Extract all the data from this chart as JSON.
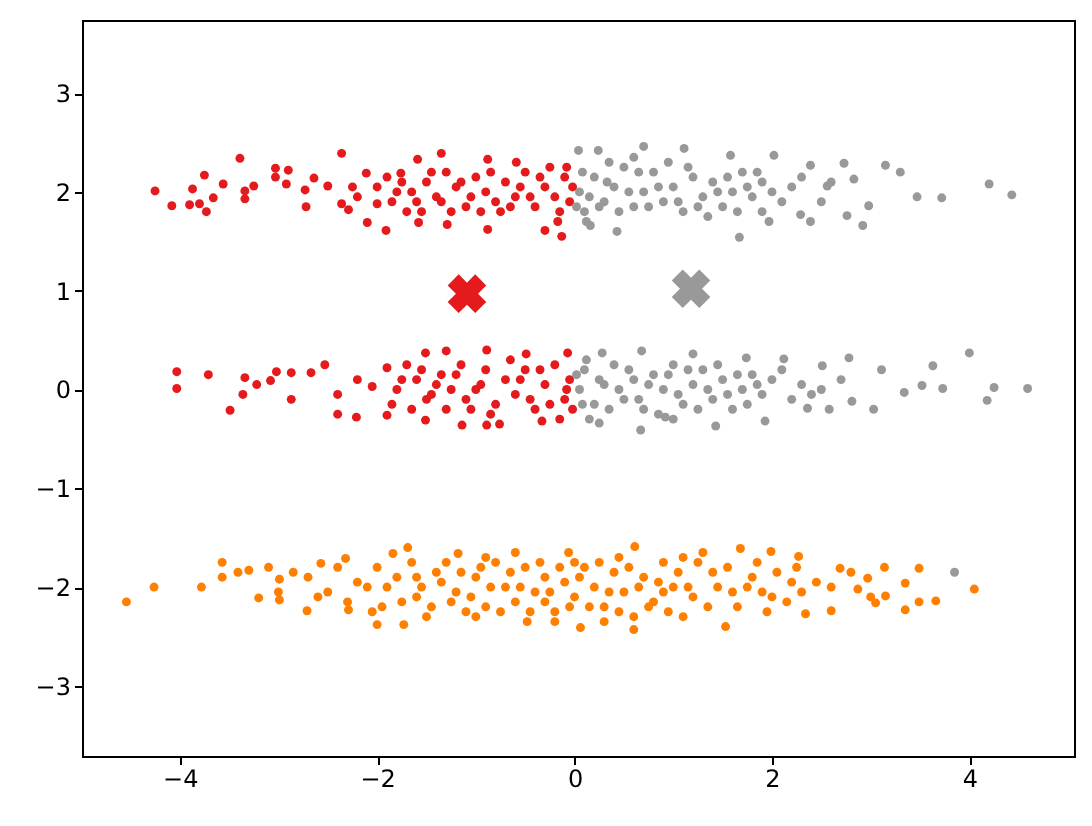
{
  "chart_data": {
    "type": "scatter",
    "xlim": [
      -4.99,
      5.06
    ],
    "ylim": [
      -3.71,
      3.74
    ],
    "xticks": [
      -4,
      -2,
      0,
      2,
      4
    ],
    "yticks": [
      -3,
      -2,
      -1,
      0,
      1,
      2,
      3
    ],
    "series": [
      {
        "color": "#e41a1c",
        "marker": "circle",
        "x": [
          -4.25,
          -4.08,
          -3.9,
          -3.87,
          -3.8,
          -3.75,
          -3.73,
          -3.66,
          -3.56,
          -3.39,
          -3.34,
          -3.34,
          -3.25,
          -3.03,
          -3.03,
          -2.9,
          -2.92,
          -2.73,
          -2.72,
          -2.64,
          -2.5,
          -2.36,
          -2.36,
          -2.29,
          -2.25,
          -2.11,
          -2.1,
          -2.0,
          -1.91,
          -1.76,
          -1.59,
          -1.58,
          -1.35,
          -1.29,
          -0.88,
          -0.88,
          -0.59,
          -0.3,
          -0.13,
          -0.17,
          -1.8,
          -1.6,
          -1.5,
          -1.4,
          -1.2,
          -1.1,
          -1.0,
          -0.9,
          -0.8,
          -0.7,
          -0.6,
          -0.5,
          -0.4,
          -0.3,
          -0.2,
          -0.1,
          -0.05,
          -0.02,
          -1.3,
          -0.75,
          -0.25,
          -1.7,
          -2.0,
          -2.2,
          -1.9,
          -4.03,
          -4.03,
          -3.71,
          -3.49,
          -3.34,
          -3.36,
          -3.22,
          -3.08,
          -3.02,
          -2.87,
          -2.87,
          -2.67,
          -2.53,
          -2.4,
          -2.21,
          -2.05,
          -1.9,
          -1.9,
          -1.51,
          -1.3,
          -1.14,
          -0.89,
          -0.89,
          -0.76,
          -0.49,
          -0.33,
          -0.07,
          -1.51,
          -1.8,
          -1.6,
          -1.5,
          -1.4,
          -1.2,
          -1.1,
          -1.0,
          -0.9,
          -0.8,
          -0.7,
          -0.6,
          -0.5,
          -0.4,
          -0.3,
          -0.2,
          -0.1,
          -0.05,
          -0.02,
          -1.3,
          -2.2,
          -2.4,
          -1.7,
          -0.65,
          -0.15,
          -1.85,
          -1.75,
          -1.65,
          -1.55,
          -1.45,
          -1.35,
          -1.25,
          -1.15,
          -1.05,
          -0.95,
          -0.85,
          -0.65,
          -0.55,
          -0.45,
          -0.35,
          -0.15,
          -0.08,
          -1.85,
          -1.75,
          -1.65,
          -1.55,
          -1.45,
          -1.35,
          -1.25,
          -1.15,
          -1.05,
          -0.95,
          -0.85,
          -0.55,
          -0.45,
          -0.35,
          -0.25,
          -0.08
        ],
        "values": [
          2.01,
          1.86,
          1.87,
          2.03,
          1.88,
          2.17,
          1.8,
          1.94,
          2.08,
          2.34,
          2.01,
          1.93,
          2.06,
          2.24,
          2.15,
          2.22,
          2.08,
          2.02,
          1.85,
          2.14,
          2.06,
          2.39,
          1.88,
          1.82,
          2.05,
          2.19,
          1.69,
          1.88,
          1.61,
          2.19,
          2.33,
          1.69,
          2.39,
          1.67,
          1.62,
          2.33,
          2.3,
          1.61,
          1.55,
          1.7,
          2.0,
          1.9,
          2.1,
          1.95,
          2.05,
          1.85,
          2.15,
          2.0,
          1.9,
          2.1,
          1.95,
          2.2,
          1.85,
          2.05,
          1.95,
          2.15,
          1.9,
          2.05,
          2.2,
          1.8,
          2.25,
          1.8,
          2.05,
          1.95,
          2.15,
          0.18,
          0.01,
          0.15,
          -0.21,
          0.12,
          -0.05,
          0.05,
          0.09,
          0.18,
          0.17,
          -0.1,
          0.17,
          0.25,
          -0.25,
          -0.28,
          0.03,
          0.22,
          -0.26,
          0.37,
          0.39,
          -0.36,
          0.4,
          -0.36,
          -0.35,
          0.36,
          -0.32,
          0.37,
          -0.31,
          0.0,
          0.1,
          -0.1,
          0.05,
          0.15,
          -0.1,
          0.0,
          0.2,
          -0.15,
          0.1,
          -0.05,
          0.2,
          -0.2,
          0.05,
          0.25,
          -0.1,
          0.1,
          -0.2,
          -0.2,
          0.1,
          -0.05,
          0.25,
          0.3,
          -0.3,
          1.9,
          2.1,
          2.0,
          1.8,
          2.2,
          1.9,
          1.8,
          2.1,
          1.95,
          1.8,
          2.2,
          1.85,
          2.05,
          1.95,
          2.15,
          1.8,
          2.25,
          -0.15,
          0.1,
          -0.2,
          0.2,
          -0.05,
          0.15,
          0.0,
          0.25,
          -0.2,
          0.05,
          -0.25,
          0.1,
          -0.1,
          0.2,
          -0.15,
          0.0
        ]
      },
      {
        "color": "#999999",
        "marker": "circle",
        "x": [
          0.04,
          0.24,
          0.7,
          1.11,
          1.58,
          2.02,
          2.39,
          2.73,
          3.15,
          3.3,
          3.47,
          3.72,
          4.2,
          4.43,
          1.67,
          1.97,
          2.39,
          2.76,
          2.92,
          2.29,
          0.43,
          0.16,
          2.98,
          2.56,
          2.83,
          0.05,
          0.1,
          0.2,
          0.3,
          0.4,
          0.5,
          0.6,
          0.7,
          0.8,
          0.9,
          1.0,
          1.1,
          1.2,
          1.3,
          1.4,
          1.5,
          1.6,
          1.7,
          1.8,
          1.9,
          2.1,
          2.2,
          0.35,
          0.95,
          1.35,
          0.15,
          0.08,
          0.12,
          0.25,
          0.33,
          0.45,
          0.55,
          0.65,
          0.75,
          0.85,
          1.05,
          1.15,
          1.25,
          1.45,
          1.55,
          1.65,
          1.75,
          1.85,
          2.0,
          2.3,
          2.5,
          2.6,
          0.02,
          0.6,
          1.9,
          0.28,
          0.68,
          1.2,
          1.74,
          2.12,
          2.51,
          2.78,
          3.11,
          3.63,
          4.0,
          4.25,
          4.18,
          4.59,
          3.73,
          3.52,
          3.34,
          3.03,
          2.81,
          2.58,
          2.36,
          1.93,
          1.43,
          0.67,
          0.25,
          0.92,
          0.05,
          0.1,
          0.2,
          0.3,
          0.4,
          0.5,
          0.6,
          0.7,
          0.8,
          0.9,
          1.0,
          1.1,
          1.2,
          1.3,
          1.4,
          1.5,
          1.6,
          1.7,
          1.8,
          1.9,
          2.0,
          2.2,
          2.3,
          2.5,
          0.15,
          0.08,
          0.12,
          0.25,
          0.35,
          0.45,
          0.55,
          0.65,
          0.75,
          0.85,
          0.95,
          1.05,
          1.15,
          1.25,
          1.35,
          1.45,
          1.55,
          1.65,
          1.75,
          1.85,
          2.1,
          2.4,
          2.7,
          0.02,
          1.0,
          3.85
        ],
        "values": [
          2.42,
          2.42,
          2.46,
          2.44,
          2.37,
          2.37,
          2.27,
          2.29,
          2.27,
          2.2,
          1.95,
          1.94,
          2.08,
          1.97,
          1.54,
          1.7,
          1.7,
          1.76,
          1.66,
          1.77,
          1.6,
          1.66,
          1.86,
          2.06,
          2.13,
          2.0,
          1.8,
          2.15,
          1.9,
          2.05,
          2.25,
          1.85,
          2.0,
          2.2,
          1.9,
          2.05,
          1.8,
          2.15,
          1.95,
          2.1,
          1.85,
          2.0,
          2.2,
          1.95,
          2.1,
          1.9,
          2.05,
          2.3,
          2.3,
          1.75,
          1.95,
          2.2,
          1.7,
          1.85,
          2.1,
          1.8,
          2.0,
          2.2,
          1.85,
          2.05,
          1.9,
          2.25,
          1.85,
          2.0,
          2.15,
          1.8,
          2.05,
          2.2,
          2.0,
          2.15,
          1.9,
          2.1,
          1.85,
          2.35,
          1.8,
          0.37,
          0.39,
          0.36,
          0.32,
          0.31,
          0.24,
          0.32,
          0.2,
          0.24,
          0.37,
          0.02,
          -0.11,
          0.01,
          0.01,
          0.04,
          -0.03,
          -0.2,
          -0.12,
          -0.2,
          -0.19,
          -0.32,
          -0.37,
          -0.41,
          -0.34,
          -0.28,
          0.0,
          0.2,
          -0.15,
          0.05,
          0.25,
          -0.1,
          0.1,
          -0.2,
          0.15,
          0.0,
          0.25,
          -0.15,
          0.05,
          0.2,
          -0.1,
          0.1,
          -0.2,
          0.0,
          0.15,
          -0.05,
          0.1,
          -0.1,
          0.05,
          0.0,
          -0.3,
          -0.15,
          0.3,
          0.1,
          -0.2,
          0.0,
          0.2,
          -0.1,
          0.05,
          -0.25,
          0.15,
          -0.05,
          0.2,
          -0.2,
          0.0,
          0.25,
          -0.05,
          0.15,
          -0.15,
          0.05,
          0.2,
          -0.05,
          0.1,
          0.15,
          -0.3,
          -1.85
        ]
      },
      {
        "color": "#ff7f00",
        "marker": "circle",
        "x": [
          -4.54,
          -4.26,
          -3.78,
          -3.57,
          -3.57,
          -3.41,
          -3.3,
          -3.2,
          -3.1,
          -2.99,
          -2.99,
          -2.71,
          -2.57,
          -2.29,
          -2.32,
          -2.0,
          -1.73,
          -1.84,
          -1.69,
          -1.18,
          -0.48,
          0.06,
          -0.06,
          0.61,
          0.6,
          1.53,
          1.68,
          1.99,
          2.27,
          2.34,
          2.6,
          2.69,
          2.87,
          2.97,
          3.14,
          3.15,
          3.05,
          3.35,
          3.35,
          3.49,
          3.49,
          3.66,
          4.05,
          -1.9,
          -1.6,
          -1.4,
          -1.2,
          -1.0,
          -0.9,
          -0.8,
          -0.7,
          -0.6,
          -0.5,
          -0.4,
          -0.3,
          -0.2,
          -0.1,
          0.0,
          0.1,
          0.2,
          0.3,
          0.4,
          0.5,
          0.7,
          0.8,
          0.9,
          1.0,
          1.2,
          1.4,
          1.6,
          1.8,
          2.0,
          2.2,
          -2.2,
          -2.5,
          -1.5,
          0.6,
          1.1,
          -1.1,
          -2.7,
          -2.4,
          -2.3,
          -2.1,
          -2.0,
          -1.95,
          -1.8,
          -1.75,
          -1.65,
          -1.55,
          -1.45,
          -1.35,
          -1.3,
          -1.25,
          -1.15,
          -1.05,
          -0.95,
          -0.85,
          -0.75,
          -0.65,
          -0.55,
          -0.45,
          -0.35,
          -0.25,
          -0.15,
          -0.05,
          0.05,
          0.15,
          0.25,
          0.35,
          0.45,
          0.55,
          0.65,
          0.75,
          0.85,
          0.95,
          1.05,
          1.15,
          1.25,
          1.35,
          1.45,
          1.55,
          1.65,
          1.75,
          1.85,
          1.95,
          2.05,
          2.15,
          2.25,
          2.3,
          2.45,
          -2.6,
          -2.85,
          -3.0,
          2.8,
          3.0,
          -0.6,
          0.3,
          -1.0,
          1.3,
          -0.3,
          0.0,
          0.9,
          -1.6,
          1.9,
          -0.9,
          0.45,
          -0.2,
          1.1,
          -2.05,
          2.6
        ],
        "values": [
          -2.15,
          -2.0,
          -2.0,
          -1.75,
          -1.9,
          -1.85,
          -1.83,
          -2.11,
          -1.8,
          -1.92,
          -2.13,
          -2.24,
          -1.76,
          -2.23,
          -1.71,
          -2.38,
          -2.38,
          -1.66,
          -1.6,
          -1.66,
          -2.35,
          -2.41,
          -1.65,
          -1.59,
          -2.43,
          -2.4,
          -1.61,
          -1.64,
          -1.69,
          -2.27,
          -2.24,
          -1.81,
          -2.02,
          -1.91,
          -1.8,
          -2.09,
          -2.16,
          -1.96,
          -2.23,
          -1.81,
          -2.15,
          -2.14,
          -2.02,
          -2.0,
          -2.1,
          -1.85,
          -2.05,
          -1.9,
          -2.2,
          -1.75,
          -2.0,
          -2.15,
          -1.8,
          -2.05,
          -1.9,
          -2.25,
          -1.95,
          -2.1,
          -1.8,
          -2.0,
          -2.2,
          -1.85,
          -2.05,
          -1.9,
          -2.15,
          -1.75,
          -2.0,
          -2.1,
          -1.85,
          -2.05,
          -1.9,
          -2.1,
          -1.95,
          -1.95,
          -2.05,
          -2.3,
          -2.3,
          -1.7,
          -2.25,
          -1.9,
          -1.8,
          -2.15,
          -2.0,
          -1.8,
          -2.2,
          -1.9,
          -2.15,
          -1.75,
          -2.0,
          -2.2,
          -1.95,
          -1.75,
          -2.15,
          -1.85,
          -2.1,
          -1.8,
          -2.0,
          -2.25,
          -1.85,
          -2.0,
          -2.25,
          -1.75,
          -2.05,
          -1.8,
          -2.2,
          -1.9,
          -2.2,
          -1.75,
          -2.05,
          -2.25,
          -1.8,
          -2.0,
          -2.2,
          -1.95,
          -2.25,
          -1.85,
          -2.0,
          -1.75,
          -2.2,
          -2.0,
          -1.8,
          -2.2,
          -2.0,
          -1.75,
          -2.25,
          -1.85,
          -2.15,
          -1.8,
          -2.05,
          -1.95,
          -2.1,
          -1.85,
          -2.05,
          -1.85,
          -2.1,
          -1.65,
          -2.35,
          -2.3,
          -1.65,
          -2.15,
          -1.75,
          -2.05,
          -1.9,
          -2.05,
          -1.7,
          -1.7,
          -2.35,
          -2.3,
          -2.25,
          -2.0
        ]
      },
      {
        "color": "#e41a1c",
        "marker": "cross",
        "x": [
          -1.09
        ],
        "values": [
          0.97
        ]
      },
      {
        "color": "#999999",
        "marker": "cross",
        "x": [
          1.18
        ],
        "values": [
          1.02
        ]
      }
    ]
  }
}
